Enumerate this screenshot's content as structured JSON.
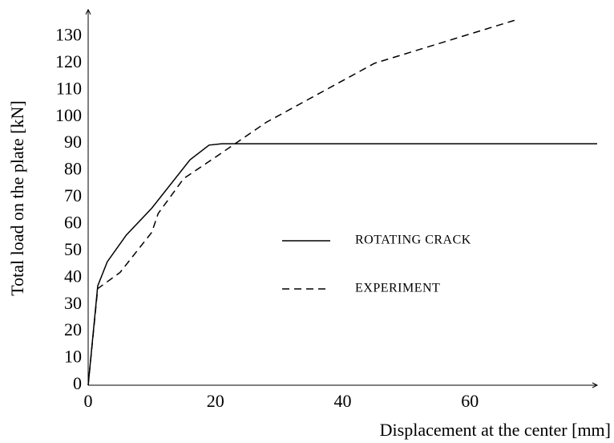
{
  "chart_data": {
    "type": "line",
    "xlabel": "Displacement at the center [mm]",
    "ylabel": "Total load on the plate [kN]",
    "xlim": [
      0,
      80
    ],
    "ylim": [
      0,
      140
    ],
    "xticks": [
      0,
      20,
      40,
      60
    ],
    "yticks": [
      0,
      10,
      20,
      30,
      40,
      50,
      60,
      70,
      80,
      90,
      100,
      110,
      120,
      130
    ],
    "grid": false,
    "legend": "center",
    "series": [
      {
        "name": "ROTATING CRACK",
        "color": "#000000",
        "style": "solid",
        "x": [
          0,
          1.5,
          3,
          6,
          10,
          16,
          19,
          21,
          80
        ],
        "values": [
          0,
          37,
          46,
          56,
          66,
          84,
          89.5,
          90,
          90
        ]
      },
      {
        "name": "EXPERIMENT",
        "color": "#000000",
        "style": "dashed",
        "x": [
          0,
          1.5,
          5,
          10,
          11,
          15,
          20,
          28,
          45,
          67
        ],
        "values": [
          0,
          36,
          42,
          57,
          64,
          77,
          85,
          98,
          120,
          136
        ]
      }
    ]
  }
}
